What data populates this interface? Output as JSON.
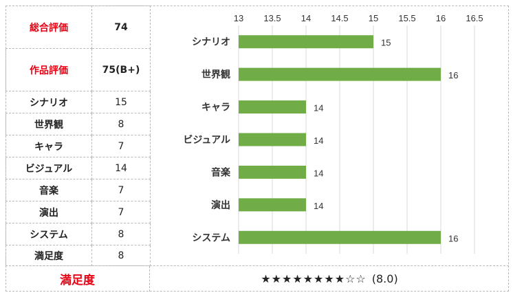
{
  "table": {
    "rows": [
      {
        "label": "総合評価",
        "value": "74",
        "red": true,
        "bold": true
      },
      {
        "label": "作品評価",
        "value": "75(B+)",
        "red": true,
        "bold": true
      },
      {
        "label": "シナリオ",
        "value": "15"
      },
      {
        "label": "世界観",
        "value": "8"
      },
      {
        "label": "キャラ",
        "value": "7"
      },
      {
        "label": "ビジュアル",
        "value": "14"
      },
      {
        "label": "音楽",
        "value": "7"
      },
      {
        "label": "演出",
        "value": "7"
      },
      {
        "label": "システム",
        "value": "8"
      },
      {
        "label": "満足度",
        "value": "8"
      }
    ]
  },
  "satisfaction": {
    "label": "満足度",
    "stars": "★★★★★★★★☆☆",
    "score": "(8.0)"
  },
  "colors": {
    "bar": "#70ad47",
    "accent_red": "#e60012",
    "grid": "#d9d9d9"
  },
  "chart_data": {
    "type": "bar",
    "orientation": "horizontal",
    "categories": [
      "シナリオ",
      "世界観",
      "キャラ",
      "ビジュアル",
      "音楽",
      "演出",
      "システム"
    ],
    "values": [
      15,
      16,
      14,
      14,
      14,
      14,
      16
    ],
    "xlim": [
      13,
      16.5
    ],
    "xticks": [
      "13",
      "13.5",
      "14",
      "14.5",
      "15",
      "15.5",
      "16",
      "16.5"
    ],
    "tick_values": [
      13,
      13.5,
      14,
      14.5,
      15,
      15.5,
      16,
      16.5
    ],
    "axis_position": "top",
    "grid": true,
    "data_labels": [
      "15",
      "16",
      "14",
      "14",
      "14",
      "14",
      "16"
    ]
  }
}
